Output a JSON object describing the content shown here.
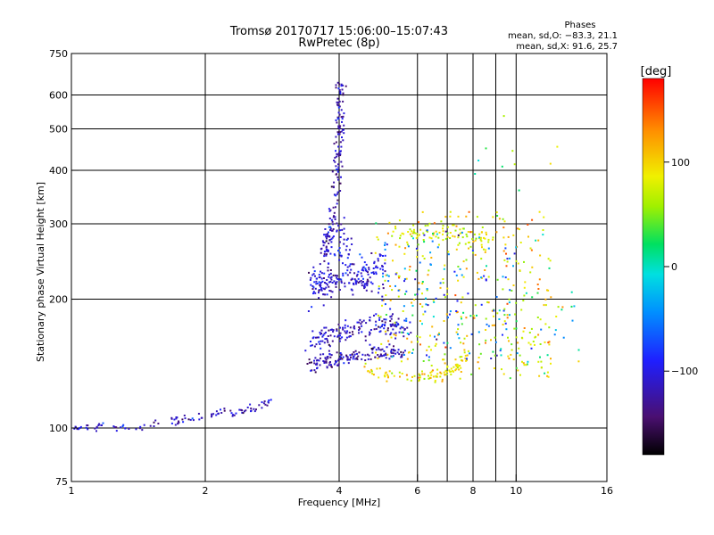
{
  "chart_data": {
    "type": "scatter",
    "title_line1": "Tromsø 20170717 15:06:00–15:07:43",
    "title_line2": "RwPretec (8p)",
    "xlabel": "Frequency [MHz]",
    "ylabel": "Stationary phase Virtual Height [km]",
    "x_scale": "log",
    "y_scale": "log",
    "xlim": [
      1,
      16
    ],
    "ylim": [
      75,
      750
    ],
    "x_ticks": [
      {
        "v": 1,
        "label": "1"
      },
      {
        "v": 2,
        "label": "2"
      },
      {
        "v": 4,
        "label": "4"
      },
      {
        "v": 6,
        "label": "6"
      },
      {
        "v": 8,
        "label": "8"
      },
      {
        "v": 10,
        "label": "10"
      },
      {
        "v": 16,
        "label": "16"
      }
    ],
    "x_grid": [
      2,
      4,
      6,
      7,
      8,
      9,
      10
    ],
    "y_ticks": [
      {
        "v": 75,
        "label": "75"
      },
      {
        "v": 100,
        "label": "100"
      },
      {
        "v": 200,
        "label": "200"
      },
      {
        "v": 300,
        "label": "300"
      },
      {
        "v": 400,
        "label": "400"
      },
      {
        "v": 500,
        "label": "500"
      },
      {
        "v": 600,
        "label": "600"
      },
      {
        "v": 750,
        "label": "750"
      }
    ],
    "y_grid": [
      100,
      200,
      300,
      400,
      500,
      600
    ],
    "grid": true,
    "stats": {
      "header": "Phases",
      "line_o": "mean, sd,O: −83.3, 21.1",
      "line_x": "mean, sd,X:  91.6, 25.7"
    },
    "colorbar": {
      "label": "[deg]",
      "range": [
        -180,
        180
      ],
      "ticks": [
        {
          "v": 100,
          "label": "100"
        },
        {
          "v": 0,
          "label": "0"
        },
        {
          "v": -100,
          "label": "−100"
        }
      ]
    },
    "traces": [
      {
        "kind": "line",
        "phase": -112,
        "spread": 0.012,
        "count": 110,
        "pts": [
          [
            1.0,
            99
          ],
          [
            1.05,
            100
          ],
          [
            1.2,
            101
          ],
          [
            1.4,
            100
          ],
          [
            1.55,
            103
          ],
          [
            1.7,
            104
          ],
          [
            1.9,
            106
          ],
          [
            2.1,
            108
          ],
          [
            2.3,
            108
          ],
          [
            2.5,
            110
          ],
          [
            2.7,
            113
          ],
          [
            2.85,
            118
          ]
        ]
      },
      {
        "kind": "line",
        "phase": -120,
        "spread": 0.02,
        "count": 150,
        "pts": [
          [
            3.4,
            140
          ],
          [
            3.7,
            143
          ],
          [
            4.0,
            145
          ],
          [
            4.4,
            148
          ],
          [
            5.0,
            150
          ],
          [
            5.6,
            150
          ]
        ]
      },
      {
        "kind": "line",
        "phase": -115,
        "spread": 0.03,
        "count": 160,
        "pts": [
          [
            3.4,
            160
          ],
          [
            3.8,
            165
          ],
          [
            4.3,
            170
          ],
          [
            5.0,
            175
          ],
          [
            5.8,
            172
          ]
        ]
      },
      {
        "kind": "line",
        "phase": -110,
        "spread": 0.035,
        "count": 140,
        "pts": [
          [
            3.5,
            215
          ],
          [
            3.9,
            220
          ],
          [
            4.4,
            222
          ],
          [
            5.0,
            218
          ]
        ]
      },
      {
        "kind": "line",
        "phase": -118,
        "spread": 0.02,
        "count": 150,
        "pts": [
          [
            3.7,
            250
          ],
          [
            3.9,
            320
          ],
          [
            3.98,
            420
          ],
          [
            4.02,
            520
          ],
          [
            4.0,
            640
          ]
        ]
      },
      {
        "kind": "line",
        "phase": -105,
        "spread": 0.04,
        "count": 120,
        "pts": [
          [
            3.5,
            200
          ],
          [
            3.7,
            250
          ],
          [
            3.9,
            300
          ],
          [
            4.1,
            260
          ],
          [
            4.4,
            230
          ],
          [
            4.8,
            240
          ],
          [
            5.2,
            250
          ]
        ]
      },
      {
        "kind": "line",
        "phase": 95,
        "spread": 0.018,
        "count": 90,
        "pts": [
          [
            4.6,
            137
          ],
          [
            5.2,
            133
          ],
          [
            6.0,
            130
          ],
          [
            6.8,
            133
          ],
          [
            7.4,
            140
          ],
          [
            7.8,
            150
          ]
        ]
      },
      {
        "kind": "line",
        "phase": 80,
        "spread": 0.03,
        "count": 80,
        "pts": [
          [
            5.5,
            280
          ],
          [
            6.2,
            290
          ],
          [
            7.0,
            285
          ],
          [
            7.8,
            275
          ],
          [
            8.8,
            280
          ]
        ]
      },
      {
        "kind": "cloud",
        "phase": 90,
        "phase_sd": 55,
        "count": 330,
        "x": [
          4.8,
          12.0
        ],
        "y": [
          130,
          320
        ]
      },
      {
        "kind": "cloud",
        "phase": -60,
        "phase_sd": 60,
        "count": 120,
        "x": [
          5.0,
          10.0
        ],
        "y": [
          145,
          290
        ]
      },
      {
        "kind": "cloud",
        "phase": 30,
        "phase_sd": 80,
        "count": 45,
        "x": [
          8.5,
          14.0
        ],
        "y": [
          140,
          210
        ]
      },
      {
        "kind": "cloud",
        "phase": 60,
        "phase_sd": 80,
        "count": 10,
        "x": [
          7.5,
          12.5
        ],
        "y": [
          340,
          600
        ]
      }
    ]
  }
}
